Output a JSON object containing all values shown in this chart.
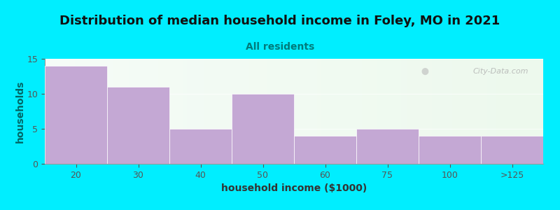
{
  "title": "Distribution of median household income in Foley, MO in 2021",
  "subtitle": "All residents",
  "xlabel": "household income ($1000)",
  "ylabel": "households",
  "bar_labels": [
    "20",
    "30",
    "40",
    "50",
    "60",
    "75",
    "100",
    ">125"
  ],
  "bar_values": [
    14,
    11,
    5,
    10,
    4,
    5,
    4,
    4
  ],
  "bar_color": "#C4A8D4",
  "bar_edge_color": "#B090C0",
  "background_color": "#00EEFF",
  "plot_bg_color": "#F2FAF2",
  "title_fontsize": 13,
  "title_color": "#111111",
  "subtitle_fontsize": 10,
  "subtitle_color": "#007B7B",
  "ylabel_color": "#006666",
  "xlabel_color": "#333333",
  "tick_color": "#555555",
  "ylim": [
    0,
    15
  ],
  "yticks": [
    0,
    5,
    10,
    15
  ],
  "watermark": "City-Data.com"
}
